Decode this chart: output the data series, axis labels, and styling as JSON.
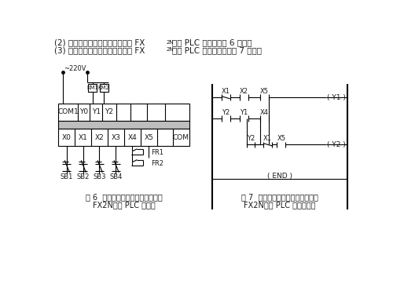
{
  "bg_color": "#ffffff",
  "text_color": "#1a1a1a",
  "fig6_caption1": "图 6  三相异步电动机顺序电路三菱",
  "fig6_caption2": "FX2N系列 PLC 接线图",
  "fig7_caption1": "图 7  三相异步电动机顺序电路三菱",
  "fig7_caption2": "FX2N系列 PLC 控制梯形图"
}
